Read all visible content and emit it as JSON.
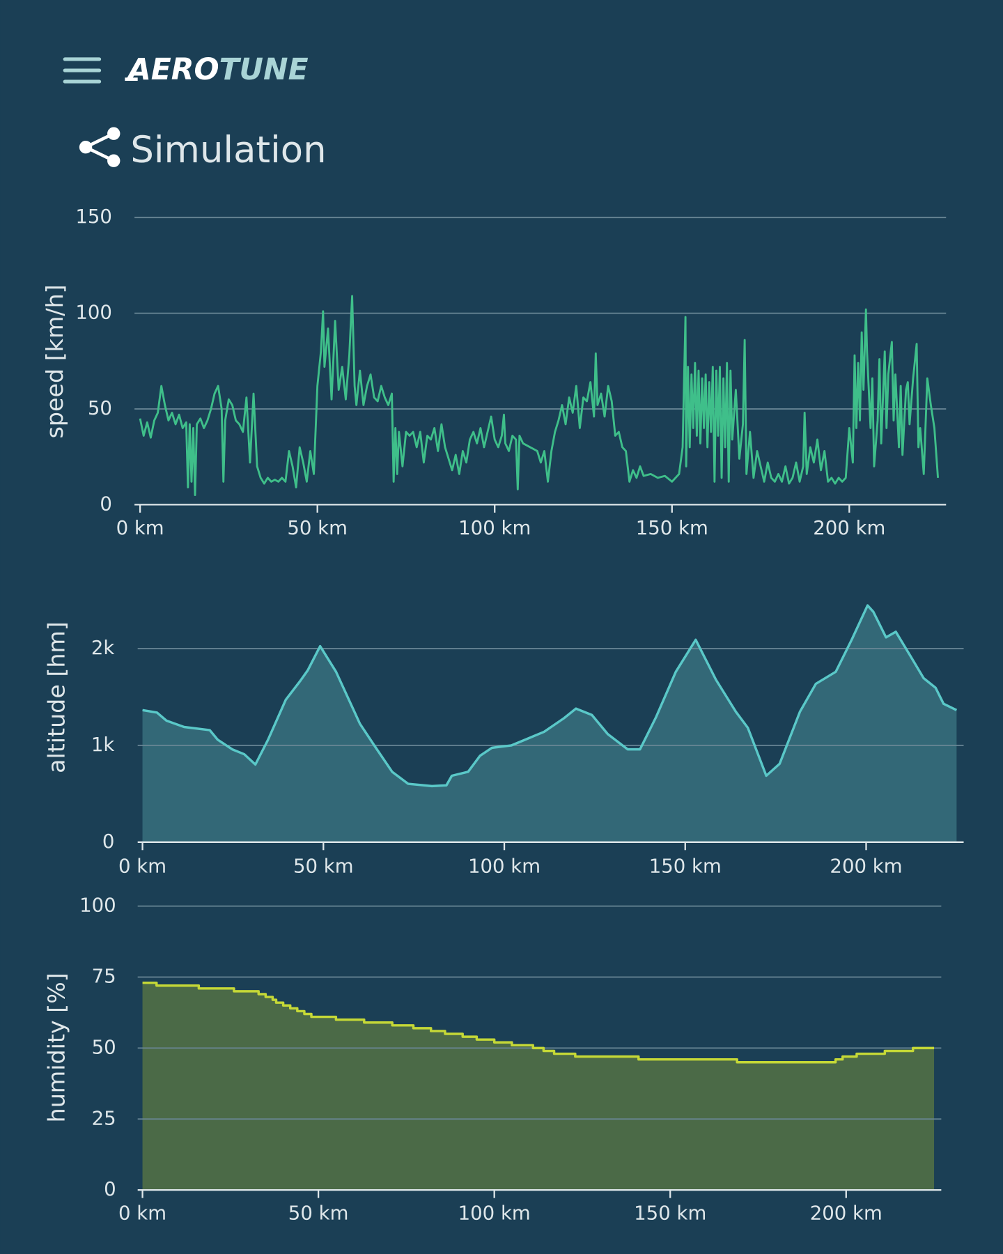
{
  "header": {
    "brand": {
      "bold": "AERO",
      "light": "TUNE"
    },
    "title": "Simulation"
  },
  "chart_data": [
    {
      "type": "line",
      "y_label": "speed [km/h]",
      "color": "#3fbf8a",
      "grid": true,
      "xlim": [
        0,
        227
      ],
      "ylim": [
        0,
        150
      ],
      "yticks": [
        0,
        50,
        100,
        150
      ],
      "xticks": [
        {
          "value": 0,
          "label": "0 km"
        },
        {
          "value": 50,
          "label": "50 km"
        },
        {
          "value": 100,
          "label": "100 km"
        },
        {
          "value": 150,
          "label": "150 km"
        },
        {
          "value": 200,
          "label": "200 km"
        }
      ],
      "x": [
        0,
        1,
        2,
        3,
        4,
        5,
        6,
        7,
        8,
        9,
        10,
        11,
        12,
        13,
        13.5,
        14,
        14.5,
        15,
        15.5,
        16,
        17,
        18,
        19,
        20,
        21,
        22,
        23,
        23.5,
        24,
        25,
        26,
        27,
        28,
        29,
        30,
        31,
        32,
        33,
        34,
        35,
        36,
        37,
        38,
        39,
        40,
        41,
        42,
        43,
        44,
        45,
        46,
        47,
        48,
        49,
        50,
        51,
        51.6,
        52,
        53,
        54,
        55,
        56,
        57,
        58,
        59,
        59.8,
        60.5,
        61,
        62,
        63,
        64,
        65,
        66,
        67,
        68,
        69,
        70,
        71,
        71.5,
        72,
        72.5,
        73,
        74,
        75,
        76,
        77,
        78,
        79,
        80,
        81,
        82,
        83,
        84,
        85,
        86,
        87,
        88,
        89,
        90,
        91,
        92,
        93,
        94,
        95,
        96,
        97,
        98,
        99,
        100,
        101,
        102,
        102.6,
        103,
        104,
        105,
        106,
        106.5,
        107,
        108,
        110,
        112,
        113,
        114,
        115,
        116,
        117,
        118,
        119,
        120,
        121,
        122,
        123,
        124,
        125,
        126,
        127,
        128,
        128.5,
        129,
        130,
        131,
        132,
        133,
        134,
        135,
        136,
        137,
        138,
        139,
        140,
        141,
        142,
        144,
        146,
        148,
        150,
        152,
        153,
        153.8,
        154,
        154.5,
        155,
        155.5,
        156,
        156.5,
        157,
        157.5,
        158,
        158.5,
        159,
        159.5,
        160,
        160.5,
        161,
        161.5,
        162,
        162.5,
        163,
        163.5,
        164,
        164.5,
        165,
        165.5,
        166,
        166.5,
        167,
        168,
        169,
        170,
        170.5,
        171,
        172,
        173,
        174,
        175,
        176,
        177,
        178,
        179,
        180,
        181,
        182,
        183,
        184,
        185,
        186,
        187,
        187.4,
        188,
        189,
        190,
        191,
        192,
        193,
        194,
        195,
        196,
        197,
        198,
        199,
        200,
        201,
        201.5,
        202,
        202.5,
        203,
        203.5,
        204,
        204.7,
        205,
        206,
        206.5,
        207,
        208,
        208.5,
        209,
        210,
        210.5,
        211,
        212,
        212.5,
        213,
        214,
        214.5,
        215,
        216,
        216.5,
        217,
        218,
        219,
        219.5,
        220,
        221,
        222,
        223,
        224,
        225
      ],
      "values": [
        45,
        36,
        43,
        35,
        44,
        48,
        62,
        52,
        44,
        48,
        42,
        47,
        40,
        43,
        9,
        42,
        12,
        40,
        5,
        42,
        45,
        40,
        44,
        50,
        58,
        62,
        50,
        12,
        44,
        55,
        52,
        44,
        42,
        38,
        56,
        22,
        58,
        20,
        14,
        11,
        14,
        12,
        13,
        12,
        14,
        12,
        28,
        20,
        9,
        30,
        22,
        12,
        28,
        16,
        62,
        80,
        101,
        72,
        92,
        55,
        96,
        60,
        72,
        55,
        78,
        109,
        62,
        52,
        70,
        52,
        62,
        68,
        56,
        54,
        62,
        56,
        52,
        58,
        12,
        40,
        16,
        38,
        20,
        38,
        36,
        38,
        30,
        38,
        22,
        36,
        34,
        40,
        28,
        42,
        30,
        24,
        18,
        26,
        16,
        28,
        22,
        34,
        38,
        32,
        40,
        30,
        38,
        46,
        34,
        30,
        36,
        47,
        32,
        28,
        36,
        34,
        8,
        36,
        32,
        30,
        28,
        22,
        28,
        12,
        28,
        38,
        44,
        52,
        42,
        56,
        48,
        62,
        40,
        56,
        54,
        64,
        46,
        79,
        52,
        58,
        46,
        62,
        54,
        36,
        38,
        30,
        28,
        12,
        18,
        14,
        20,
        15,
        16,
        14,
        15,
        12,
        16,
        30,
        98,
        20,
        72,
        30,
        68,
        40,
        74,
        36,
        70,
        32,
        66,
        40,
        68,
        30,
        64,
        38,
        72,
        12,
        70,
        36,
        72,
        14,
        66,
        30,
        74,
        12,
        70,
        34,
        60,
        24,
        42,
        86,
        16,
        38,
        14,
        28,
        20,
        12,
        22,
        14,
        12,
        16,
        12,
        20,
        11,
        14,
        22,
        12,
        20,
        48,
        16,
        30,
        22,
        34,
        18,
        28,
        12,
        14,
        11,
        14,
        12,
        14,
        40,
        22,
        78,
        40,
        74,
        44,
        90,
        60,
        102,
        80,
        40,
        66,
        20,
        44,
        76,
        32,
        80,
        40,
        68,
        85,
        44,
        68,
        30,
        62,
        26,
        60,
        64,
        42,
        66,
        84,
        30,
        40,
        16,
        66,
        52,
        40,
        14
      ]
    },
    {
      "type": "area",
      "y_label": "altitude [hm]",
      "color": "#5ac8c8",
      "fill": "#336877",
      "grid": true,
      "xlim": [
        0,
        227
      ],
      "ylim": [
        0,
        2500
      ],
      "yticks": [
        0,
        {
          "value": 1000,
          "label": "1k"
        },
        {
          "value": 2000,
          "label": "2k"
        }
      ],
      "xticks": [
        {
          "value": 0,
          "label": "0 km"
        },
        {
          "value": 50,
          "label": "50 km"
        },
        {
          "value": 100,
          "label": "100 km"
        },
        {
          "value": 150,
          "label": "150 km"
        },
        {
          "value": 200,
          "label": "200 km"
        }
      ],
      "x": [
        0,
        4,
        6.6,
        11.5,
        18.6,
        20.8,
        24.8,
        28.1,
        31.2,
        34.7,
        39.6,
        43.5,
        45.7,
        49.1,
        53.5,
        60.1,
        64.5,
        69,
        73.4,
        80,
        84,
        85.5,
        90,
        93.3,
        96.6,
        102,
        111,
        116.5,
        119.8,
        124.2,
        128.6,
        134.1,
        137.5,
        141.9,
        147.4,
        152.9,
        158.5,
        164,
        167.3,
        172.4,
        176.1,
        181.7,
        186.1,
        191.6,
        196,
        200.4,
        202,
        205.5,
        208.2,
        212.2,
        215.9,
        219.2,
        221.4,
        225
      ],
      "values": [
        1364,
        1339,
        1256,
        1190,
        1157,
        1058,
        959,
        909,
        802,
        1058,
        1471,
        1661,
        1777,
        2025,
        1760,
        1223,
        975,
        727,
        603,
        579,
        587,
        686,
        727,
        893,
        975,
        1000,
        1140,
        1281,
        1380,
        1314,
        1116,
        959,
        959,
        1289,
        1760,
        2091,
        1678,
        1347,
        1182,
        686,
        810,
        1347,
        1636,
        1760,
        2091,
        2446,
        2380,
        2116,
        2174,
        1926,
        1694,
        1595,
        1430,
        1364
      ]
    },
    {
      "type": "step",
      "y_label": "humidity [%]",
      "color": "#c5d837",
      "fill": "#4b6a47",
      "grid": true,
      "xlim": [
        0,
        227
      ],
      "ylim": [
        0,
        100
      ],
      "yticks": [
        0,
        25,
        50,
        75,
        100
      ],
      "xticks": [
        {
          "value": 0,
          "label": "0 km"
        },
        {
          "value": 50,
          "label": "50 km"
        },
        {
          "value": 100,
          "label": "100 km"
        },
        {
          "value": 150,
          "label": "150 km"
        },
        {
          "value": 200,
          "label": "200 km"
        }
      ],
      "x": [
        0,
        4,
        16,
        26,
        33,
        35,
        37,
        38,
        40,
        42,
        44,
        46,
        48,
        55,
        63,
        71,
        77,
        82,
        86,
        91,
        95,
        100,
        105,
        111,
        114,
        117,
        123,
        141,
        169,
        197,
        199,
        203,
        211,
        219,
        225
      ],
      "values": [
        73,
        72,
        71,
        70,
        69,
        68,
        67,
        66,
        65,
        64,
        63,
        62,
        61,
        60,
        59,
        58,
        57,
        56,
        55,
        54,
        53,
        52,
        51,
        50,
        49,
        48,
        47,
        46,
        45,
        46,
        47,
        48,
        49,
        50,
        50
      ]
    }
  ]
}
